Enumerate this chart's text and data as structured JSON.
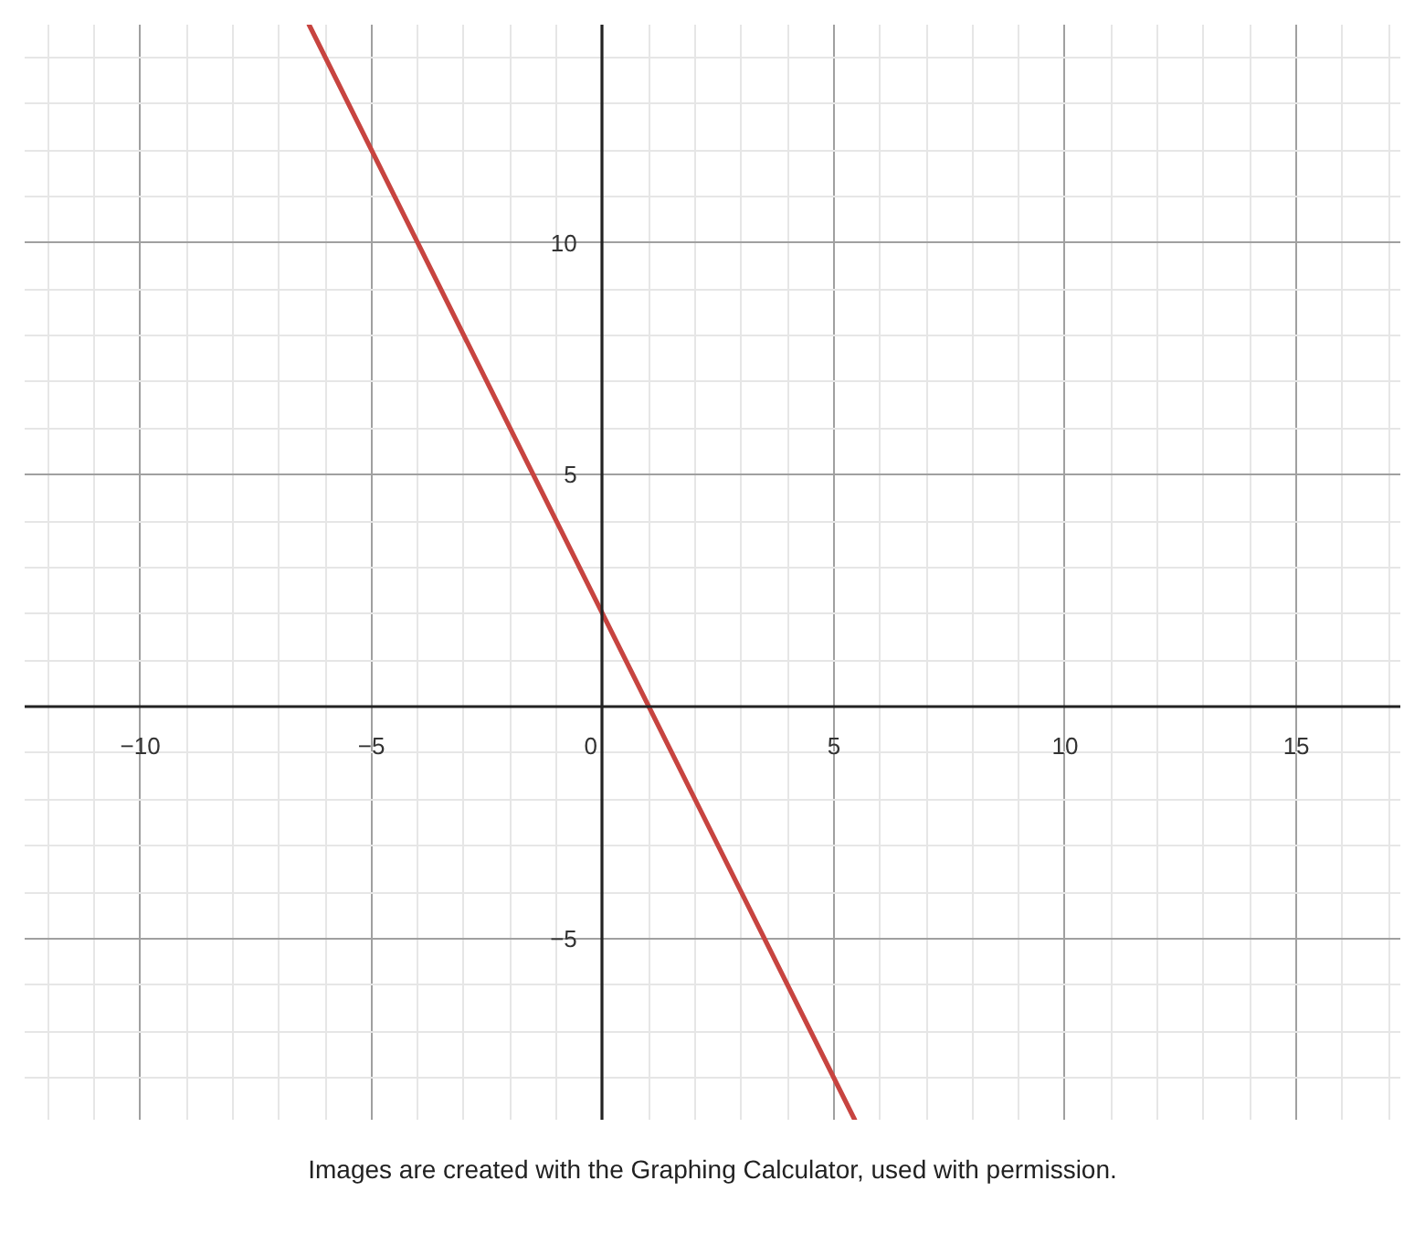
{
  "chart_data": {
    "type": "line",
    "series": [
      {
        "color": "#c74440",
        "x": [
          -6.35,
          5.45
        ],
        "values": [
          14.7,
          -8.9
        ]
      }
    ],
    "xlim": [
      -12.5,
      17.25
    ],
    "ylim": [
      -8.9,
      14.7
    ],
    "xticks": [
      -10,
      -5,
      0,
      5,
      10,
      15
    ],
    "yticks": [
      -5,
      5,
      10
    ],
    "grid": true,
    "annotations": [
      "Images are created with the Graphing Calculator, used with permission."
    ]
  }
}
